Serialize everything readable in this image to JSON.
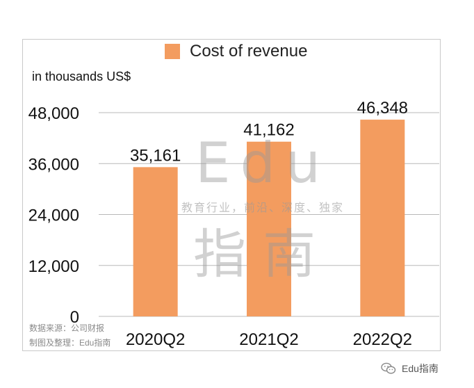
{
  "chart_data": {
    "type": "bar",
    "categories": [
      "2020Q2",
      "2021Q2",
      "2022Q2"
    ],
    "series": [
      {
        "name": "Cost of revenue",
        "values": [
          35161,
          41162,
          46348
        ],
        "color": "#f39c5f"
      }
    ],
    "data_labels": [
      "35,161",
      "41,162",
      "46,348"
    ],
    "ylabel": "in thousands US$",
    "ylim": [
      0,
      48000
    ],
    "yticks": [
      0,
      12000,
      24000,
      36000,
      48000
    ],
    "ytick_labels": [
      "0",
      "12,000",
      "24,000",
      "36,000",
      "48,000"
    ],
    "grid": true,
    "legend_position": "top-center"
  },
  "watermark": {
    "top": "Edu",
    "middle": "教育行业，前沿、深度、独家",
    "bottom": "指南"
  },
  "source_note": {
    "line1": "数据来源：公司财报",
    "line2": "制图及整理：Edu指南"
  },
  "footer": {
    "brand": "Edu指南",
    "icon": "wechat-icon"
  },
  "colors": {
    "bar": "#f39c5f",
    "grid": "#b8b8b8",
    "watermark": "#9a9a9a"
  }
}
